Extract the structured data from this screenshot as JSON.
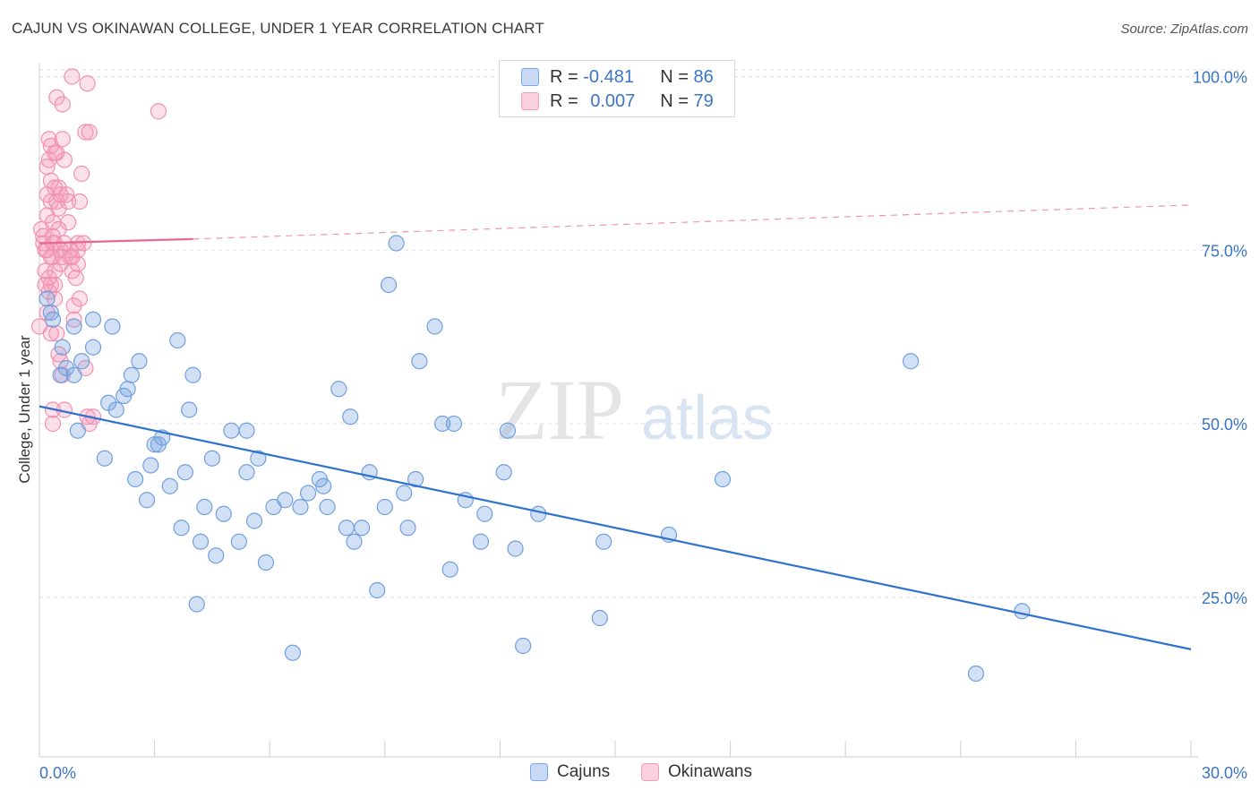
{
  "title": "CAJUN VS OKINAWAN COLLEGE, UNDER 1 YEAR CORRELATION CHART",
  "source": "Source: ZipAtlas.com",
  "watermark": {
    "zip": "ZIP",
    "atlas": "atlas"
  },
  "legend": {
    "rows": [
      {
        "r_label": "R = ",
        "r_value": "-0.481",
        "n_label": "N = ",
        "n_value": "86"
      },
      {
        "r_label": "R = ",
        "r_value": "0.007",
        "n_label": "N = ",
        "n_value": "79"
      }
    ]
  },
  "chart_data": {
    "type": "scatter",
    "title": "CAJUN VS OKINAWAN COLLEGE, UNDER 1 YEAR CORRELATION CHART",
    "xlabel": "",
    "ylabel": "College, Under 1 year",
    "xlim": [
      0,
      30
    ],
    "ylim": [
      2,
      102
    ],
    "x_tick_labels": [
      "0.0%",
      "30.0%"
    ],
    "y_tick_labels": [
      {
        "value": 100,
        "label": "100.0%"
      },
      {
        "value": 75,
        "label": "75.0%"
      },
      {
        "value": 50,
        "label": "50.0%"
      },
      {
        "value": 25,
        "label": "25.0%"
      }
    ],
    "grid": true,
    "legend_position": "top-center",
    "colors": {
      "cajuns": "#7ba7e3",
      "cajuns_line": "#2f72d0",
      "okinawans": "#f49ab8",
      "okinawans_line": "#e8688f"
    },
    "series": [
      {
        "name": "Cajuns",
        "points": [
          [
            0.2,
            68
          ],
          [
            0.3,
            66
          ],
          [
            0.35,
            65
          ],
          [
            0.6,
            61
          ],
          [
            0.7,
            58
          ],
          [
            0.9,
            57
          ],
          [
            1.1,
            59
          ],
          [
            0.9,
            64
          ],
          [
            1.4,
            61
          ],
          [
            1.4,
            65
          ],
          [
            1.9,
            64
          ],
          [
            1.0,
            49
          ],
          [
            1.7,
            45
          ],
          [
            1.8,
            53
          ],
          [
            2.0,
            52
          ],
          [
            2.2,
            54
          ],
          [
            2.3,
            55
          ],
          [
            2.4,
            57
          ],
          [
            2.6,
            59
          ],
          [
            2.5,
            42
          ],
          [
            2.8,
            39
          ],
          [
            2.9,
            44
          ],
          [
            3.0,
            47
          ],
          [
            3.1,
            47
          ],
          [
            3.2,
            48
          ],
          [
            3.4,
            41
          ],
          [
            3.6,
            62
          ],
          [
            3.7,
            35
          ],
          [
            3.8,
            43
          ],
          [
            3.9,
            52
          ],
          [
            4.0,
            57
          ],
          [
            4.1,
            24
          ],
          [
            4.2,
            33
          ],
          [
            4.3,
            38
          ],
          [
            4.5,
            45
          ],
          [
            4.6,
            31
          ],
          [
            4.8,
            37
          ],
          [
            5.0,
            49
          ],
          [
            5.2,
            33
          ],
          [
            5.4,
            43
          ],
          [
            5.4,
            49
          ],
          [
            5.6,
            36
          ],
          [
            5.7,
            45
          ],
          [
            5.9,
            30
          ],
          [
            6.1,
            38
          ],
          [
            6.4,
            39
          ],
          [
            6.6,
            17
          ],
          [
            6.8,
            38
          ],
          [
            7.0,
            40
          ],
          [
            7.3,
            42
          ],
          [
            7.4,
            41
          ],
          [
            7.5,
            38
          ],
          [
            7.8,
            55
          ],
          [
            8.0,
            35
          ],
          [
            8.1,
            51
          ],
          [
            8.2,
            33
          ],
          [
            8.4,
            35
          ],
          [
            8.6,
            43
          ],
          [
            8.8,
            26
          ],
          [
            9.0,
            38
          ],
          [
            9.1,
            70
          ],
          [
            9.3,
            76
          ],
          [
            9.5,
            40
          ],
          [
            9.6,
            35
          ],
          [
            9.8,
            42
          ],
          [
            9.9,
            59
          ],
          [
            10.3,
            64
          ],
          [
            10.5,
            50
          ],
          [
            10.7,
            29
          ],
          [
            10.8,
            50
          ],
          [
            11.1,
            39
          ],
          [
            11.5,
            33
          ],
          [
            11.6,
            37
          ],
          [
            12.1,
            43
          ],
          [
            12.2,
            49
          ],
          [
            12.4,
            32
          ],
          [
            12.6,
            18
          ],
          [
            13.0,
            37
          ],
          [
            14.6,
            22
          ],
          [
            14.7,
            33
          ],
          [
            16.4,
            34
          ],
          [
            17.8,
            42
          ],
          [
            22.7,
            59
          ],
          [
            24.4,
            14
          ],
          [
            25.6,
            23
          ],
          [
            0.55,
            57
          ]
        ]
      },
      {
        "name": "Okinawans",
        "points": [
          [
            0.0,
            64
          ],
          [
            0.05,
            78
          ],
          [
            0.1,
            76
          ],
          [
            0.1,
            77
          ],
          [
            0.15,
            75
          ],
          [
            0.15,
            72
          ],
          [
            0.2,
            80
          ],
          [
            0.2,
            83
          ],
          [
            0.2,
            87
          ],
          [
            0.25,
            88
          ],
          [
            0.25,
            91
          ],
          [
            0.3,
            90
          ],
          [
            0.3,
            85
          ],
          [
            0.3,
            82
          ],
          [
            0.35,
            79
          ],
          [
            0.35,
            76
          ],
          [
            0.35,
            74
          ],
          [
            0.4,
            72
          ],
          [
            0.4,
            70
          ],
          [
            0.4,
            68
          ],
          [
            0.45,
            97
          ],
          [
            0.45,
            89
          ],
          [
            0.5,
            84
          ],
          [
            0.5,
            81
          ],
          [
            0.55,
            75
          ],
          [
            0.55,
            73
          ],
          [
            0.6,
            91
          ],
          [
            0.6,
            96
          ],
          [
            0.65,
            88
          ],
          [
            0.7,
            83
          ],
          [
            0.75,
            79
          ],
          [
            0.8,
            74
          ],
          [
            0.85,
            72
          ],
          [
            0.9,
            67
          ],
          [
            0.9,
            65
          ],
          [
            0.95,
            71
          ],
          [
            1.0,
            75
          ],
          [
            1.05,
            82
          ],
          [
            1.1,
            86
          ],
          [
            1.2,
            58
          ],
          [
            1.3,
            50
          ],
          [
            1.4,
            51
          ],
          [
            1.0,
            76
          ],
          [
            1.2,
            92
          ],
          [
            1.3,
            92
          ],
          [
            1.25,
            99
          ],
          [
            0.85,
            100
          ],
          [
            3.1,
            95
          ],
          [
            0.3,
            70
          ],
          [
            0.4,
            76
          ],
          [
            0.45,
            63
          ],
          [
            0.5,
            60
          ],
          [
            0.55,
            59
          ],
          [
            0.6,
            57
          ],
          [
            0.65,
            52
          ],
          [
            0.35,
            52
          ],
          [
            0.25,
            69
          ],
          [
            0.3,
            74
          ],
          [
            0.35,
            77
          ],
          [
            0.2,
            75
          ],
          [
            0.25,
            71
          ],
          [
            0.15,
            70
          ],
          [
            0.2,
            66
          ],
          [
            0.3,
            63
          ],
          [
            0.4,
            84
          ],
          [
            0.45,
            82
          ],
          [
            0.55,
            83
          ],
          [
            0.65,
            76
          ],
          [
            0.75,
            82
          ],
          [
            0.8,
            75
          ],
          [
            0.85,
            74
          ],
          [
            1.0,
            73
          ],
          [
            1.05,
            68
          ],
          [
            1.15,
            76
          ],
          [
            1.25,
            51
          ],
          [
            0.35,
            50
          ],
          [
            0.4,
            89
          ],
          [
            0.5,
            78
          ],
          [
            0.6,
            74
          ]
        ]
      }
    ],
    "trend_lines": [
      {
        "series": "Cajuns",
        "style": "solid",
        "from": [
          0,
          52.5
        ],
        "to": [
          30,
          17.5
        ]
      },
      {
        "series": "Okinawans",
        "style": "solid",
        "from": [
          0,
          76
        ],
        "to": [
          4,
          76.6
        ]
      },
      {
        "series": "Okinawans",
        "style": "dashed",
        "from": [
          4,
          76.6
        ],
        "to": [
          30,
          81.5
        ]
      }
    ]
  },
  "bottom_legend": [
    {
      "label": "Cajuns",
      "color": "#c7d9f5",
      "border": "#7ba7e3"
    },
    {
      "label": "Okinawans",
      "color": "#fbd0df",
      "border": "#f49ab8"
    }
  ]
}
